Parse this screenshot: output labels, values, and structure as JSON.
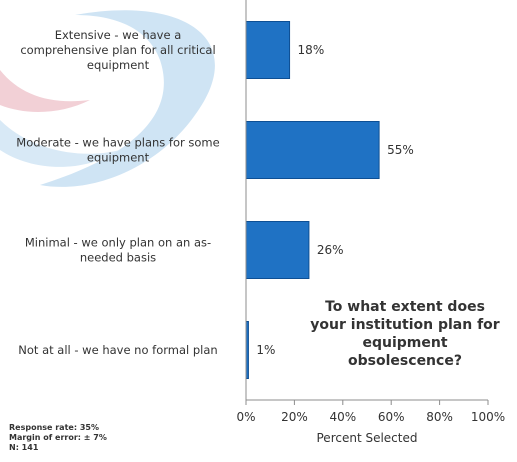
{
  "chart_data": {
    "type": "bar",
    "orientation": "horizontal",
    "categories": [
      "Extensive - we have a comprehensive plan for all critical equipment",
      "Moderate - we have plans for some equipment",
      "Minimal - we only plan on an as-needed basis",
      "Not at all - we have no formal plan"
    ],
    "category_lines": [
      [
        "Extensive - we have a",
        "comprehensive plan for all critical",
        "equipment"
      ],
      [
        "Moderate - we have plans for some",
        "equipment"
      ],
      [
        "Minimal - we only plan on an as-",
        "needed basis"
      ],
      [
        "Not at all - we have no formal plan"
      ]
    ],
    "values": [
      18,
      55,
      26,
      1
    ],
    "value_labels": [
      "18%",
      "55%",
      "26%",
      "1%"
    ],
    "xlabel": "Percent Selected",
    "xlim": [
      0,
      100
    ],
    "xticks": [
      0,
      20,
      40,
      60,
      80,
      100
    ],
    "xtick_labels": [
      "0%",
      "20%",
      "40%",
      "60%",
      "80%",
      "100%"
    ],
    "grid": false,
    "bar_color": "#1f72c4",
    "bar_edge_color": "#0d4f94"
  },
  "question": "To what extent does\nyour institution  plan for\nequipment\nobsolescence?",
  "notes": {
    "response_rate": "Response rate: 35%",
    "margin_of_error": "Margin of error: ± 7%",
    "n": "N: 141"
  }
}
